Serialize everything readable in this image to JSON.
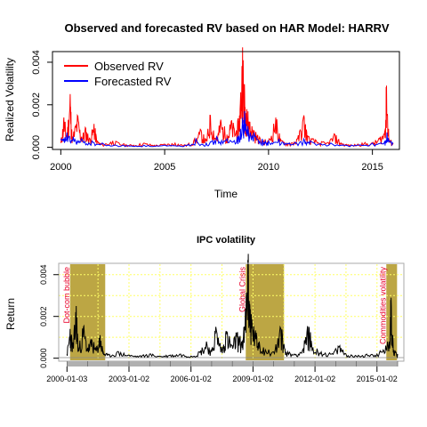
{
  "chart_data": [
    {
      "type": "line",
      "title": "Observed and forecasted RV based on HAR Model: HARRV",
      "xlabel": "Time",
      "ylabel": "Realized Volatility",
      "xlim": [
        1999.6,
        2016.3
      ],
      "ylim": [
        -0.0001,
        0.0045
      ],
      "xticks": [
        2000,
        2005,
        2010,
        2015
      ],
      "xtick_labels": [
        "2000",
        "2005",
        "2010",
        "2015"
      ],
      "yticks": [
        0.0,
        0.002,
        0.004
      ],
      "ytick_labels": [
        "0.000",
        "0.002",
        "0.004"
      ],
      "legend_position": "top-left",
      "series": [
        {
          "name": "Observed RV",
          "color": "#ff0000",
          "x": [
            2000.0,
            2000.15,
            2000.3,
            2000.45,
            2000.55,
            2000.8,
            2001.0,
            2001.2,
            2001.4,
            2001.6,
            2001.75,
            2002.0,
            2002.5,
            2003.0,
            2003.5,
            2004.0,
            2004.5,
            2005.0,
            2005.5,
            2006.0,
            2006.4,
            2006.75,
            2007.0,
            2007.2,
            2007.5,
            2007.7,
            2008.0,
            2008.2,
            2008.45,
            2008.6,
            2008.75,
            2008.85,
            2008.95,
            2009.1,
            2009.3,
            2009.6,
            2010.0,
            2010.35,
            2010.6,
            2011.0,
            2011.4,
            2011.7,
            2011.9,
            2012.3,
            2012.8,
            2013.2,
            2013.5,
            2014.0,
            2014.5,
            2015.0,
            2015.3,
            2015.6,
            2015.68,
            2015.8,
            2016.0
          ],
          "y": [
            0.0002,
            0.0014,
            0.0006,
            0.0025,
            0.0004,
            0.0015,
            0.0005,
            0.0009,
            0.0004,
            0.0011,
            0.0003,
            0.00015,
            0.0003,
            0.00015,
            0.0001,
            0.0002,
            0.0001,
            0.00015,
            0.0002,
            0.0001,
            0.0003,
            0.0008,
            0.0003,
            0.0015,
            0.0004,
            0.0013,
            0.0006,
            0.0012,
            0.0008,
            0.0015,
            0.0047,
            0.0025,
            0.0018,
            0.0012,
            0.0008,
            0.0004,
            0.0003,
            0.0014,
            0.0003,
            0.0002,
            0.0004,
            0.0015,
            0.0005,
            0.0003,
            0.0002,
            0.0006,
            0.0002,
            0.0001,
            0.0002,
            0.0002,
            0.0004,
            0.0008,
            0.0029,
            0.0004,
            0.0002
          ]
        },
        {
          "name": "Forecasted RV",
          "color": "#0000ff",
          "x": [
            2000.0,
            2000.3,
            2000.6,
            2001.0,
            2001.5,
            2002.0,
            2003.0,
            2004.0,
            2005.0,
            2006.0,
            2006.5,
            2007.0,
            2007.5,
            2008.0,
            2008.5,
            2008.75,
            2008.85,
            2009.0,
            2009.3,
            2009.7,
            2010.0,
            2010.5,
            2011.0,
            2011.7,
            2012.0,
            2013.0,
            2014.0,
            2015.0,
            2015.6,
            2015.7,
            2016.0
          ],
          "y": [
            0.0004,
            0.0007,
            0.0005,
            0.0004,
            0.0003,
            0.0002,
            0.0001,
            0.0001,
            0.0001,
            0.0001,
            0.0004,
            0.0002,
            0.0005,
            0.0004,
            0.0005,
            0.0014,
            0.0017,
            0.001,
            0.0007,
            0.0004,
            0.0003,
            0.0004,
            0.0002,
            0.0004,
            0.0003,
            0.0002,
            0.0001,
            0.0002,
            0.0003,
            0.0007,
            0.0002
          ]
        }
      ]
    },
    {
      "type": "line",
      "title": "IPC volatility",
      "xlabel": "",
      "ylabel": "Return",
      "xlim": [
        1999.6,
        2016.3
      ],
      "ylim": [
        -0.0001,
        0.0045
      ],
      "xticks": [
        2000.0,
        2003.0,
        2006.0,
        2009.0,
        2012.0,
        2015.0
      ],
      "xtick_labels": [
        "2000-01-03",
        "2003-01-02",
        "2006-01-02",
        "2009-01-02",
        "2012-01-02",
        "2015-01-02"
      ],
      "yticks": [
        0.0,
        0.002,
        0.004
      ],
      "ytick_labels": [
        "0.000",
        "0.002",
        "0.004"
      ],
      "grid": true,
      "grid_color": "#ffff66",
      "event_color": "#bca644",
      "events": [
        {
          "label": "Dot-com bubble",
          "start": 2000.15,
          "end": 2001.85
        },
        {
          "label": "Global Crisis",
          "start": 2008.65,
          "end": 2010.5
        },
        {
          "label": "Commodities volatility",
          "start": 2015.45,
          "end": 2015.97
        }
      ],
      "series": [
        {
          "name": "",
          "color": "#000000",
          "x": [
            2000.0,
            2000.15,
            2000.3,
            2000.45,
            2000.55,
            2000.8,
            2001.0,
            2001.2,
            2001.4,
            2001.6,
            2001.75,
            2002.0,
            2002.5,
            2003.0,
            2003.5,
            2004.0,
            2004.5,
            2005.0,
            2005.5,
            2006.0,
            2006.4,
            2006.75,
            2007.0,
            2007.2,
            2007.5,
            2007.7,
            2008.0,
            2008.2,
            2008.45,
            2008.6,
            2008.75,
            2008.85,
            2008.95,
            2009.1,
            2009.3,
            2009.6,
            2010.0,
            2010.35,
            2010.6,
            2011.0,
            2011.4,
            2011.7,
            2011.9,
            2012.3,
            2012.8,
            2013.2,
            2013.5,
            2014.0,
            2014.5,
            2015.0,
            2015.3,
            2015.6,
            2015.68,
            2015.8,
            2016.0
          ],
          "y": [
            0.0002,
            0.0014,
            0.0006,
            0.0025,
            0.0004,
            0.0015,
            0.0005,
            0.0009,
            0.0004,
            0.0011,
            0.0003,
            0.00015,
            0.0003,
            0.00015,
            0.0001,
            0.0002,
            0.0001,
            0.00015,
            0.0002,
            0.0001,
            0.0003,
            0.0008,
            0.0003,
            0.0015,
            0.0004,
            0.0013,
            0.0006,
            0.0012,
            0.0008,
            0.0015,
            0.0047,
            0.0025,
            0.0018,
            0.0012,
            0.0008,
            0.0004,
            0.0003,
            0.0014,
            0.0003,
            0.0002,
            0.0004,
            0.0015,
            0.0005,
            0.0003,
            0.0002,
            0.0006,
            0.0002,
            0.0001,
            0.0002,
            0.0002,
            0.0004,
            0.0008,
            0.0029,
            0.0004,
            0.0002
          ]
        }
      ]
    }
  ]
}
